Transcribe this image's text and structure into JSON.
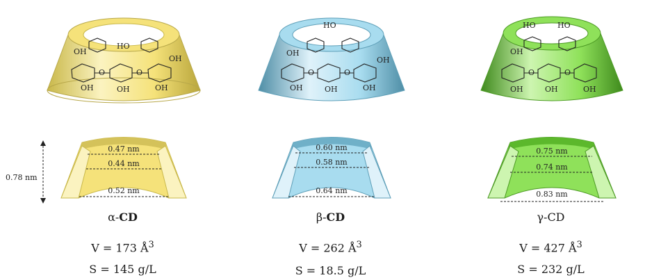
{
  "height_label": "0.78 nm",
  "cyclodextrins": [
    {
      "id": "alpha",
      "name_prefix": "α-",
      "name_bold": "CD",
      "volume": "V = 173 Å",
      "volume_exp": "3",
      "solubility": "S = 145 g/L",
      "dims": [
        "0.47 nm",
        "0.44 nm",
        "0.52 nm"
      ],
      "color": "#f5e27a",
      "color_dark": "#c9b84a",
      "color_light": "#fbf3c0"
    },
    {
      "id": "beta",
      "name_prefix": "β-",
      "name_bold": "CD",
      "volume": "V = 262 Å",
      "volume_exp": "3",
      "solubility": "S = 18.5 g/L",
      "dims": [
        "0.60 nm",
        "0.58 nm",
        "0.64 nm"
      ],
      "color": "#a8dcef",
      "color_dark": "#5e9fb8",
      "color_light": "#dff2fa"
    },
    {
      "id": "gamma",
      "name_prefix": "γ-",
      "name_bold": "",
      "name_plain": "CD",
      "volume": "V = 427 Å",
      "volume_exp": "3",
      "solubility": "S = 232 g/L",
      "dims": [
        "0.75 nm",
        "0.74 nm",
        "0.83 nm"
      ],
      "color": "#8fe15a",
      "color_dark": "#4c9a24",
      "color_light": "#cdf5b0"
    }
  ],
  "molecule_labels": [
    "OH",
    "HO",
    "O"
  ]
}
